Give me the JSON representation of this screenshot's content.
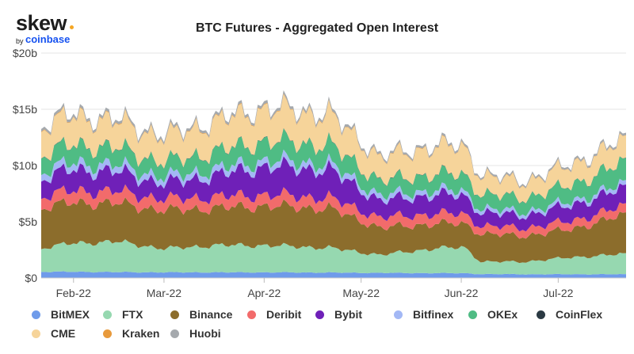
{
  "brand": {
    "word": "skew",
    "by": "by",
    "name": "coinbase"
  },
  "chart_data": {
    "type": "area",
    "stacked": true,
    "title": "BTC Futures - Aggregated Open Interest",
    "xlabel": "",
    "ylabel": "",
    "y_tick_labels": [
      "$0",
      "$5b",
      "$10b",
      "$15b",
      "$20b"
    ],
    "y_tick_values": [
      0,
      5,
      10,
      15,
      20
    ],
    "ylim": [
      0,
      20
    ],
    "x_tick_labels": [
      "Feb-22",
      "Mar-22",
      "Apr-22",
      "May-22",
      "Jun-22",
      "Jul-22"
    ],
    "x_tick_days": [
      6,
      34,
      65,
      95,
      126,
      156
    ],
    "x_range_days": [
      -4,
      177
    ],
    "units": "USD billions",
    "series": [
      {
        "name": "BitMEX",
        "color": "#6f9bea",
        "x": [
          -4,
          6,
          20,
          34,
          50,
          65,
          85,
          101,
          118,
          127,
          132,
          145,
          160,
          177
        ],
        "values": [
          0.55,
          0.55,
          0.52,
          0.5,
          0.5,
          0.5,
          0.48,
          0.45,
          0.43,
          0.42,
          0.35,
          0.33,
          0.33,
          0.33
        ]
      },
      {
        "name": "FTX",
        "color": "#96d8b0",
        "x": [
          -4,
          6,
          20,
          34,
          50,
          65,
          85,
          101,
          118,
          127,
          132,
          145,
          160,
          177
        ],
        "values": [
          2.1,
          2.55,
          2.7,
          2.1,
          2.4,
          2.4,
          2.2,
          1.6,
          2.2,
          2.3,
          1.1,
          1.1,
          1.5,
          1.8
        ]
      },
      {
        "name": "Binance",
        "color": "#8c6d2c",
        "x": [
          -4,
          6,
          20,
          34,
          50,
          65,
          85,
          101,
          118,
          127,
          132,
          145,
          160,
          177
        ],
        "values": [
          3.6,
          3.6,
          3.4,
          3.4,
          3.3,
          3.5,
          3.5,
          2.4,
          2.2,
          2.1,
          2.5,
          2.3,
          2.5,
          3.5
        ]
      },
      {
        "name": "Deribit",
        "color": "#f26b6b",
        "x": [
          -4,
          6,
          20,
          34,
          50,
          65,
          85,
          101,
          118,
          127,
          132,
          145,
          160,
          177
        ],
        "values": [
          1.0,
          1.05,
          1.05,
          1.0,
          1.0,
          1.0,
          0.95,
          0.9,
          0.88,
          0.85,
          0.7,
          0.7,
          0.72,
          0.78
        ]
      },
      {
        "name": "Bybit",
        "color": "#6f20b8",
        "x": [
          -4,
          6,
          20,
          34,
          50,
          65,
          85,
          101,
          118,
          127,
          132,
          145,
          160,
          177
        ],
        "values": [
          1.6,
          1.9,
          1.75,
          1.4,
          1.9,
          2.5,
          2.5,
          1.5,
          1.7,
          1.6,
          1.2,
          1.1,
          1.4,
          1.6
        ]
      },
      {
        "name": "Bitfinex",
        "color": "#a3b8f5",
        "x": [
          -4,
          6,
          20,
          34,
          50,
          65,
          85,
          101,
          118,
          127,
          132,
          145,
          160,
          177
        ],
        "values": [
          0.6,
          0.6,
          0.58,
          0.55,
          0.55,
          0.55,
          0.52,
          0.45,
          0.42,
          0.4,
          0.35,
          0.33,
          0.35,
          0.38
        ]
      },
      {
        "name": "OKEx",
        "color": "#4fbc84",
        "x": [
          -4,
          6,
          20,
          34,
          50,
          65,
          85,
          101,
          118,
          127,
          132,
          145,
          160,
          177
        ],
        "values": [
          1.5,
          1.6,
          1.5,
          1.3,
          1.55,
          1.7,
          1.7,
          1.3,
          1.4,
          1.45,
          1.3,
          1.2,
          1.45,
          1.9
        ]
      },
      {
        "name": "CoinFlex",
        "color": "#2b3a43",
        "x": [
          -4,
          6,
          20,
          34,
          50,
          65,
          85,
          101,
          118,
          127,
          132,
          145,
          160,
          177
        ],
        "values": [
          0.03,
          0.03,
          0.03,
          0.03,
          0.03,
          0.03,
          0.03,
          0.03,
          0.03,
          0.03,
          0.02,
          0.02,
          0.02,
          0.02
        ]
      },
      {
        "name": "CME",
        "color": "#f6d49a",
        "x": [
          -4,
          6,
          20,
          34,
          50,
          65,
          85,
          101,
          118,
          127,
          132,
          145,
          160,
          177
        ],
        "values": [
          2.4,
          2.5,
          2.3,
          2.2,
          2.6,
          2.8,
          2.6,
          2.0,
          2.4,
          2.4,
          1.6,
          1.4,
          1.7,
          1.9
        ]
      },
      {
        "name": "Kraken",
        "color": "#e89a3c",
        "x": [
          -4,
          6,
          20,
          34,
          50,
          65,
          85,
          101,
          118,
          127,
          132,
          145,
          160,
          177
        ],
        "values": [
          0.05,
          0.05,
          0.05,
          0.05,
          0.05,
          0.05,
          0.05,
          0.04,
          0.04,
          0.04,
          0.03,
          0.03,
          0.03,
          0.03
        ]
      },
      {
        "name": "Huobi",
        "color": "#a5a9ad",
        "x": [
          -4,
          6,
          20,
          34,
          50,
          65,
          85,
          101,
          118,
          127,
          132,
          145,
          160,
          177
        ],
        "values": [
          0.25,
          0.25,
          0.25,
          0.24,
          0.24,
          0.25,
          0.24,
          0.2,
          0.2,
          0.2,
          0.17,
          0.17,
          0.18,
          0.2
        ]
      }
    ],
    "legend_position": "bottom",
    "grid": true
  }
}
